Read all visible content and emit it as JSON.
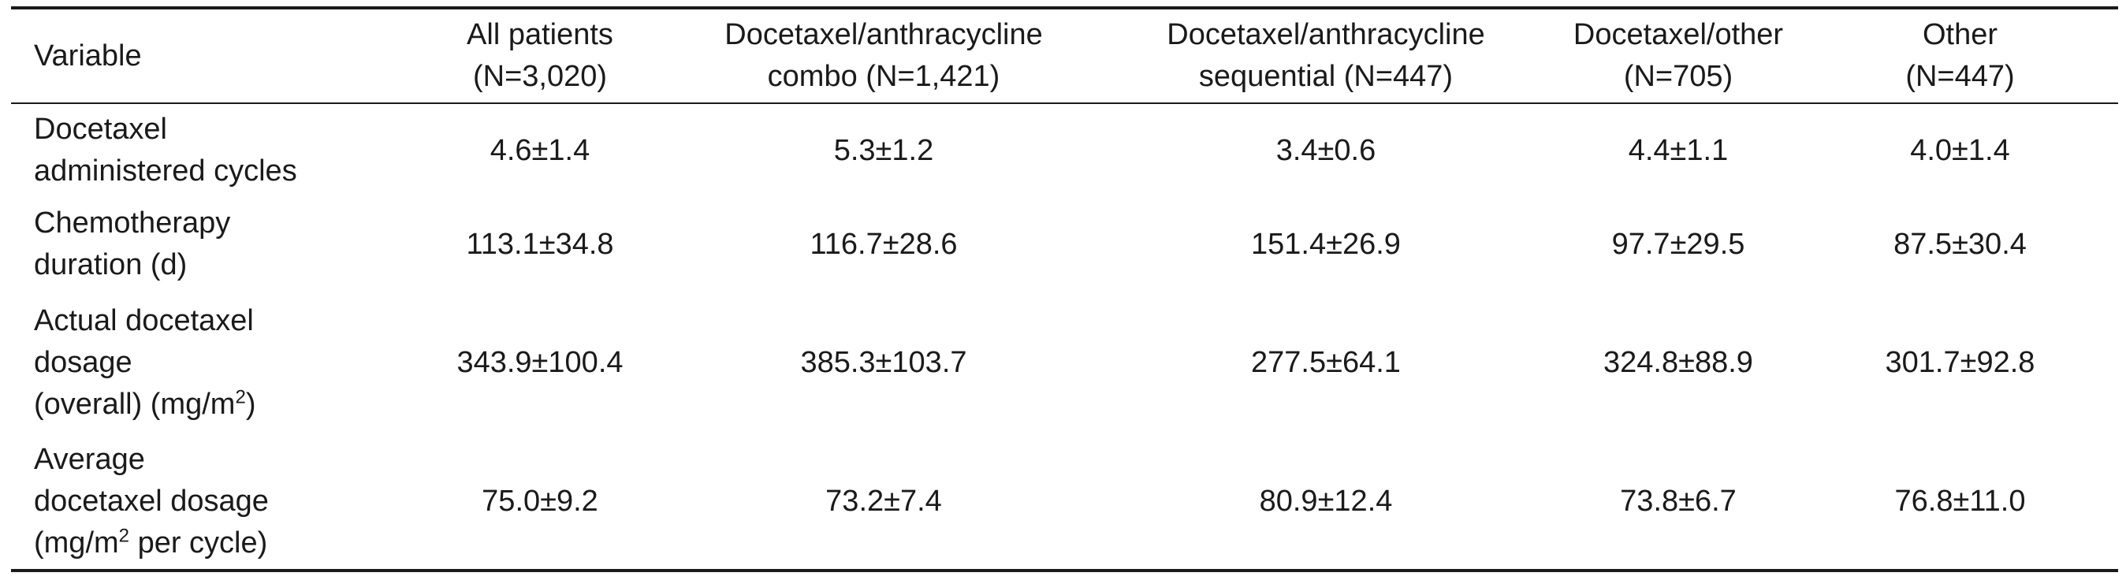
{
  "table": {
    "header": [
      [
        [
          "Variable"
        ]
      ],
      [
        [
          "All patients"
        ],
        [
          "(N=3,020)"
        ]
      ],
      [
        [
          "Docetaxel/anthracycline"
        ],
        [
          "combo (N=1,421)"
        ]
      ],
      [
        [
          "Docetaxel/anthracycline"
        ],
        [
          "sequential (N=447)"
        ]
      ],
      [
        [
          "Docetaxel/other"
        ],
        [
          "(N=705)"
        ]
      ],
      [
        [
          "Other"
        ],
        [
          "(N=447)"
        ]
      ]
    ],
    "rows": [
      [
        [
          [
            "Docetaxel"
          ],
          [
            "administered cycles"
          ]
        ],
        "4.6±1.4",
        "5.3±1.2",
        "3.4±0.6",
        "4.4±1.1",
        "4.0±1.4"
      ],
      [
        [
          [
            "Chemotherapy"
          ],
          [
            "duration (d)"
          ]
        ],
        "113.1±34.8",
        "116.7±28.6",
        "151.4±26.9",
        "97.7±29.5",
        "87.5±30.4"
      ],
      [
        [
          [
            "Actual docetaxel"
          ],
          [
            "dosage"
          ],
          [
            "(overall) (mg/m",
            {
              "sup": "2"
            },
            ")"
          ]
        ],
        "343.9±100.4",
        "385.3±103.7",
        "277.5±64.1",
        "324.8±88.9",
        "301.7±92.8"
      ],
      [
        [
          [
            "Average"
          ],
          [
            "docetaxel dosage"
          ],
          [
            "(mg/m",
            {
              "sup": "2"
            },
            " per cycle)"
          ]
        ],
        "75.0±9.2",
        "73.2±7.4",
        "80.9±12.4",
        "73.8±6.7",
        "76.8±11.0"
      ]
    ]
  }
}
